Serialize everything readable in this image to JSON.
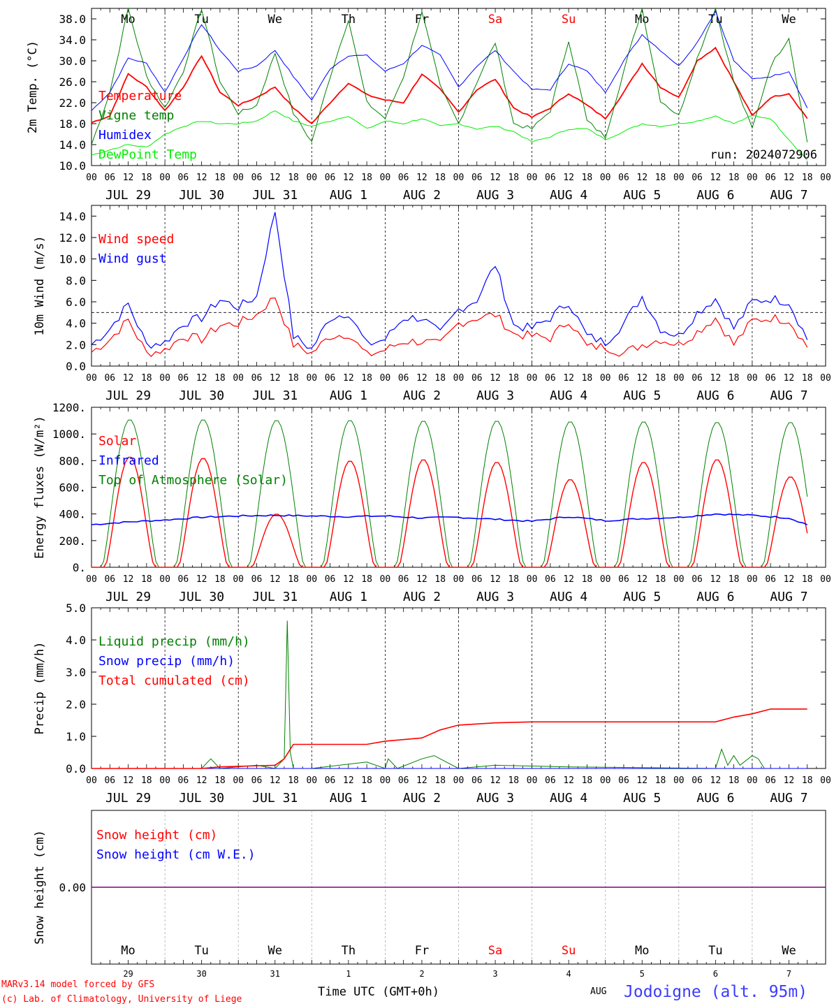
{
  "run_label": "run: 2024072906",
  "footer": {
    "model": "MARv3.14 model forced by GFS",
    "credit": "(c) Lab. of Climatology, University of Liege",
    "xlabel": "Time UTC (GMT+0h)",
    "month": "AUG",
    "location": "Jodoigne (alt. 95m)"
  },
  "days": [
    {
      "dow": "Mo",
      "date": "JUL 29",
      "num": "29",
      "weekend": false
    },
    {
      "dow": "Tu",
      "date": "JUL 30",
      "num": "30",
      "weekend": false
    },
    {
      "dow": "We",
      "date": "JUL 31",
      "num": "31",
      "weekend": false
    },
    {
      "dow": "Th",
      "date": "AUG  1",
      "num": "1",
      "weekend": false
    },
    {
      "dow": "Fr",
      "date": "AUG  2",
      "num": "2",
      "weekend": false
    },
    {
      "dow": "Sa",
      "date": "AUG  3",
      "num": "3",
      "weekend": true
    },
    {
      "dow": "Su",
      "date": "AUG  4",
      "num": "4",
      "weekend": true
    },
    {
      "dow": "Mo",
      "date": "AUG  5",
      "num": "5",
      "weekend": false
    },
    {
      "dow": "Tu",
      "date": "AUG  6",
      "num": "6",
      "weekend": false
    },
    {
      "dow": "We",
      "date": "AUG  7",
      "num": "7",
      "weekend": false
    }
  ],
  "hour_ticks": [
    "00",
    "06",
    "12",
    "18"
  ],
  "colors": {
    "red": "#ff0000",
    "blue": "#0000ff",
    "green": "#008000",
    "lightgreen": "#00ee00",
    "purple": "#800080"
  },
  "chart_data": [
    {
      "type": "line",
      "ylabel": "2m Temp. (°C)",
      "yticks": [
        "10.0",
        "14.0",
        "18.0",
        "22.0",
        "26.0",
        "30.0",
        "34.0",
        "38.0"
      ],
      "ylim": [
        10,
        40
      ],
      "series": [
        {
          "name": "Temperature",
          "color": "#ff0000",
          "hours": [
            0,
            6,
            12,
            18,
            24,
            30,
            36,
            42,
            48,
            54,
            60,
            66,
            72,
            78,
            84,
            90,
            96,
            102,
            108,
            114,
            120,
            126,
            132,
            138,
            144,
            150,
            156,
            162,
            168,
            174,
            180,
            186,
            192,
            198,
            204,
            210,
            216,
            222,
            228,
            234
          ],
          "values": [
            18.2,
            19.5,
            27.5,
            25.0,
            20.5,
            25.0,
            31.0,
            24.0,
            21.5,
            23.0,
            25.0,
            21.0,
            18.0,
            22.0,
            25.8,
            23.5,
            22.5,
            22.0,
            27.5,
            24.5,
            20.2,
            24.5,
            26.5,
            21.0,
            19.2,
            21.0,
            23.8,
            21.5,
            19.0,
            24.0,
            29.5,
            25.0,
            23.0,
            30.0,
            32.5,
            26.0,
            19.5,
            23.0,
            23.8,
            19.0
          ]
        },
        {
          "name": "Vigne temp",
          "color": "#008000",
          "hours": [
            0,
            6,
            12,
            18,
            24,
            30,
            36,
            42,
            48,
            54,
            60,
            66,
            72,
            78,
            84,
            90,
            96,
            102,
            108,
            114,
            120,
            126,
            132,
            138,
            144,
            150,
            156,
            162,
            168,
            174,
            180,
            186,
            192,
            198,
            204,
            210,
            216,
            222,
            228,
            234
          ],
          "values": [
            14.0,
            24.0,
            40.0,
            27.0,
            21.0,
            28.0,
            40.0,
            26.0,
            20.0,
            21.5,
            31.5,
            20.0,
            14.5,
            27.0,
            38.0,
            22.0,
            19.0,
            27.0,
            39.5,
            25.0,
            18.0,
            26.0,
            33.5,
            18.0,
            17.0,
            20.5,
            34.0,
            18.5,
            15.5,
            28.0,
            40.0,
            22.5,
            19.5,
            30.5,
            40.0,
            26.0,
            17.0,
            29.0,
            34.5,
            14.5
          ]
        },
        {
          "name": "Humidex",
          "color": "#0000ff",
          "hours": [
            0,
            6,
            12,
            18,
            24,
            30,
            36,
            42,
            48,
            54,
            60,
            66,
            72,
            78,
            84,
            90,
            96,
            102,
            108,
            114,
            120,
            126,
            132,
            138,
            144,
            150,
            156,
            162,
            168,
            174,
            180,
            186,
            192,
            198,
            204,
            210,
            216,
            222,
            228,
            234
          ],
          "values": [
            20.5,
            24.0,
            30.5,
            29.5,
            24.0,
            30.5,
            37.0,
            32.0,
            28.0,
            29.0,
            32.0,
            27.0,
            22.5,
            28.5,
            31.0,
            31.0,
            28.0,
            29.5,
            33.0,
            31.0,
            25.0,
            29.0,
            32.0,
            28.0,
            24.5,
            24.5,
            29.5,
            28.0,
            24.0,
            30.0,
            35.0,
            32.0,
            29.0,
            33.5,
            39.5,
            30.0,
            26.5,
            27.0,
            28.0,
            21.0
          ]
        },
        {
          "name": "DewPoint Temp",
          "color": "#00ee00",
          "hours": [
            0,
            6,
            12,
            18,
            24,
            30,
            36,
            42,
            48,
            54,
            60,
            66,
            72,
            78,
            84,
            90,
            96,
            102,
            108,
            114,
            120,
            126,
            132,
            138,
            144,
            150,
            156,
            162,
            168,
            174,
            180,
            186,
            192,
            198,
            204,
            210,
            216,
            222,
            228,
            234
          ],
          "values": [
            12.0,
            13.0,
            14.0,
            13.5,
            16.0,
            17.5,
            18.5,
            18.0,
            18.0,
            18.5,
            20.5,
            18.5,
            17.5,
            18.5,
            19.5,
            17.0,
            18.5,
            18.0,
            19.0,
            17.5,
            18.0,
            17.0,
            17.5,
            16.5,
            14.5,
            15.5,
            17.0,
            17.0,
            15.0,
            16.5,
            18.0,
            17.5,
            18.0,
            18.5,
            19.5,
            18.0,
            19.5,
            19.0,
            15.0,
            11.0
          ]
        }
      ]
    },
    {
      "type": "line",
      "ylabel": "10m Wind (m/s)",
      "yticks": [
        "0.0",
        "2.0",
        "4.0",
        "6.0",
        "8.0",
        "10.0",
        "12.0",
        "14.0"
      ],
      "ylim": [
        0,
        15
      ],
      "reference_line": 5,
      "series": [
        {
          "name": "Wind speed",
          "color": "#ff0000",
          "hours": [
            0,
            6,
            12,
            18,
            24,
            30,
            36,
            42,
            48,
            54,
            60,
            66,
            72,
            78,
            84,
            90,
            96,
            102,
            108,
            114,
            120,
            126,
            132,
            138,
            144,
            150,
            156,
            162,
            168,
            174,
            180,
            186,
            192,
            198,
            204,
            210,
            216,
            222,
            228,
            234
          ],
          "values": [
            1.3,
            2.5,
            4.3,
            1.2,
            1.5,
            2.8,
            2.5,
            3.8,
            4.0,
            4.8,
            6.5,
            2.0,
            1.2,
            2.8,
            3.0,
            1.0,
            1.5,
            2.3,
            2.3,
            2.0,
            4.0,
            4.5,
            4.8,
            3.0,
            2.8,
            2.6,
            4.3,
            1.8,
            1.8,
            1.2,
            2.0,
            2.5,
            2.0,
            3.2,
            4.5,
            2.0,
            4.2,
            4.5,
            4.3,
            1.8
          ]
        },
        {
          "name": "Wind gust",
          "color": "#0000ff",
          "hours": [
            0,
            6,
            12,
            18,
            24,
            30,
            36,
            42,
            48,
            54,
            60,
            66,
            72,
            78,
            84,
            90,
            96,
            102,
            108,
            114,
            120,
            126,
            132,
            138,
            144,
            150,
            156,
            162,
            168,
            174,
            180,
            186,
            192,
            198,
            204,
            210,
            216,
            222,
            228,
            234
          ],
          "values": [
            2.0,
            3.5,
            5.8,
            2.0,
            2.2,
            4.0,
            4.5,
            6.2,
            5.5,
            6.5,
            14.5,
            2.8,
            1.6,
            4.5,
            5.0,
            2.0,
            2.5,
            4.5,
            4.5,
            3.0,
            5.3,
            6.2,
            9.5,
            3.8,
            3.5,
            4.5,
            6.0,
            2.8,
            2.2,
            4.0,
            6.5,
            3.5,
            2.8,
            5.0,
            6.3,
            3.5,
            6.0,
            6.3,
            6.0,
            2.5
          ]
        }
      ]
    },
    {
      "type": "line",
      "ylabel": "Energy fluxes (W/m²)",
      "yticks": [
        "0.",
        "200.",
        "400.",
        "600.",
        "800.",
        "1000.",
        "1200."
      ],
      "ylim": [
        0,
        1200
      ],
      "series": [
        {
          "name": "Solar",
          "color": "#ff0000",
          "peaks": [
            830,
            820,
            400,
            800,
            810,
            790,
            660,
            790,
            810,
            680
          ]
        },
        {
          "name": "Infrared",
          "color": "#0000ff",
          "hours": [
            0,
            12,
            24,
            36,
            48,
            60,
            72,
            84,
            96,
            108,
            120,
            132,
            144,
            156,
            168,
            180,
            192,
            204,
            216,
            228,
            234
          ],
          "values": [
            320,
            340,
            355,
            375,
            385,
            390,
            385,
            380,
            385,
            370,
            375,
            360,
            345,
            380,
            350,
            365,
            375,
            400,
            390,
            370,
            320
          ]
        },
        {
          "name": "Top of Atmosphere (Solar)",
          "color": "#008000",
          "peaks": [
            1110,
            1110,
            1105,
            1105,
            1100,
            1100,
            1095,
            1095,
            1090,
            1090
          ]
        }
      ]
    },
    {
      "type": "line",
      "ylabel": "Precip (mm/h)",
      "yticks": [
        "0.0",
        "1.0",
        "2.0",
        "3.0",
        "4.0",
        "5.0"
      ],
      "ylim": [
        0,
        5
      ],
      "series": [
        {
          "name": "Liquid precip (mm/h)",
          "color": "#008000",
          "hours": [
            0,
            36,
            39,
            42,
            54,
            60,
            63,
            64,
            65,
            66,
            68,
            72,
            90,
            96,
            97,
            100,
            108,
            112,
            114,
            120,
            132,
            156,
            204,
            206,
            208,
            210,
            212,
            216,
            218,
            220,
            222
          ],
          "values": [
            0,
            0,
            0.3,
            0,
            0.1,
            0,
            0.3,
            4.6,
            0.5,
            0,
            0,
            0,
            0.2,
            0,
            0.3,
            0,
            0.3,
            0.4,
            0.3,
            0,
            0.1,
            0.05,
            0,
            0.6,
            0.1,
            0.4,
            0.1,
            0.4,
            0.3,
            0,
            0
          ]
        },
        {
          "name": "Snow precip (mm/h)",
          "color": "#0000ff",
          "hours": [
            0,
            234
          ],
          "values": [
            0,
            0
          ]
        },
        {
          "name": "Total cumulated (cm)",
          "color": "#ff0000",
          "hours": [
            0,
            36,
            42,
            60,
            63,
            66,
            72,
            90,
            96,
            108,
            114,
            120,
            132,
            144,
            168,
            192,
            204,
            210,
            216,
            222,
            228,
            234
          ],
          "values": [
            0,
            0,
            0.05,
            0.1,
            0.3,
            0.75,
            0.75,
            0.75,
            0.85,
            0.95,
            1.2,
            1.35,
            1.42,
            1.45,
            1.45,
            1.45,
            1.45,
            1.6,
            1.7,
            1.85,
            1.85,
            1.85
          ]
        }
      ]
    },
    {
      "type": "line",
      "ylabel": "Snow height (cm)",
      "yticks": [
        "0.00"
      ],
      "series": [
        {
          "name": "Snow height (cm)",
          "color": "#ff0000",
          "values": [
            0,
            0
          ]
        },
        {
          "name": "Snow height (cm W.E.)",
          "color": "#0000ff",
          "values": [
            0,
            0
          ]
        }
      ]
    }
  ]
}
